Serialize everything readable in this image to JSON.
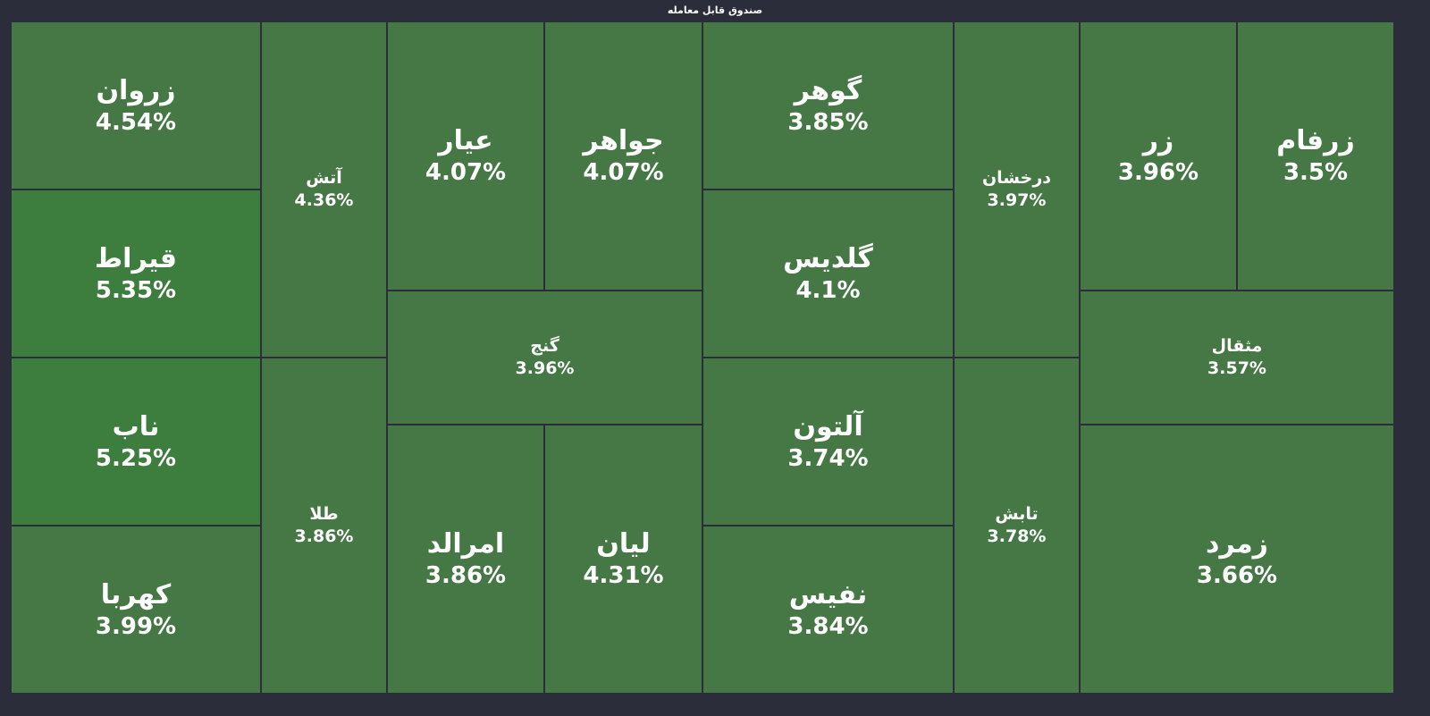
{
  "header": {
    "title": "صندوق قابل معامله"
  },
  "colors": {
    "background": "#2c2d3a",
    "tile_default": "#457845",
    "tile_strong": "#3d7d3d",
    "text": "#ffffff"
  },
  "chart_data": {
    "type": "heatmap",
    "title": "صندوق قابل معامله",
    "items": [
      {
        "name": "زروان",
        "value": 4.54,
        "label": "4.54%"
      },
      {
        "name": "قیراط",
        "value": 5.35,
        "label": "5.35%"
      },
      {
        "name": "ناب",
        "value": 5.25,
        "label": "5.25%"
      },
      {
        "name": "کهربا",
        "value": 3.99,
        "label": "3.99%"
      },
      {
        "name": "آتش",
        "value": 4.36,
        "label": "4.36%"
      },
      {
        "name": "طلا",
        "value": 3.86,
        "label": "3.86%"
      },
      {
        "name": "عیار",
        "value": 4.07,
        "label": "4.07%"
      },
      {
        "name": "جواهر",
        "value": 4.07,
        "label": "4.07%"
      },
      {
        "name": "گنج",
        "value": 3.96,
        "label": "3.96%"
      },
      {
        "name": "امرالد",
        "value": 3.86,
        "label": "3.86%"
      },
      {
        "name": "لیان",
        "value": 4.31,
        "label": "4.31%"
      },
      {
        "name": "گوهر",
        "value": 3.85,
        "label": "3.85%"
      },
      {
        "name": "گلدیس",
        "value": 4.1,
        "label": "4.1%"
      },
      {
        "name": "آلتون",
        "value": 3.74,
        "label": "3.74%"
      },
      {
        "name": "نفیس",
        "value": 3.84,
        "label": "3.84%"
      },
      {
        "name": "درخشان",
        "value": 3.97,
        "label": "3.97%"
      },
      {
        "name": "تابش",
        "value": 3.78,
        "label": "3.78%"
      },
      {
        "name": "زر",
        "value": 3.96,
        "label": "3.96%"
      },
      {
        "name": "زرفام",
        "value": 3.5,
        "label": "3.5%"
      },
      {
        "name": "مثقال",
        "value": 3.57,
        "label": "3.57%"
      },
      {
        "name": "زمرد",
        "value": 3.66,
        "label": "3.66%"
      }
    ]
  }
}
